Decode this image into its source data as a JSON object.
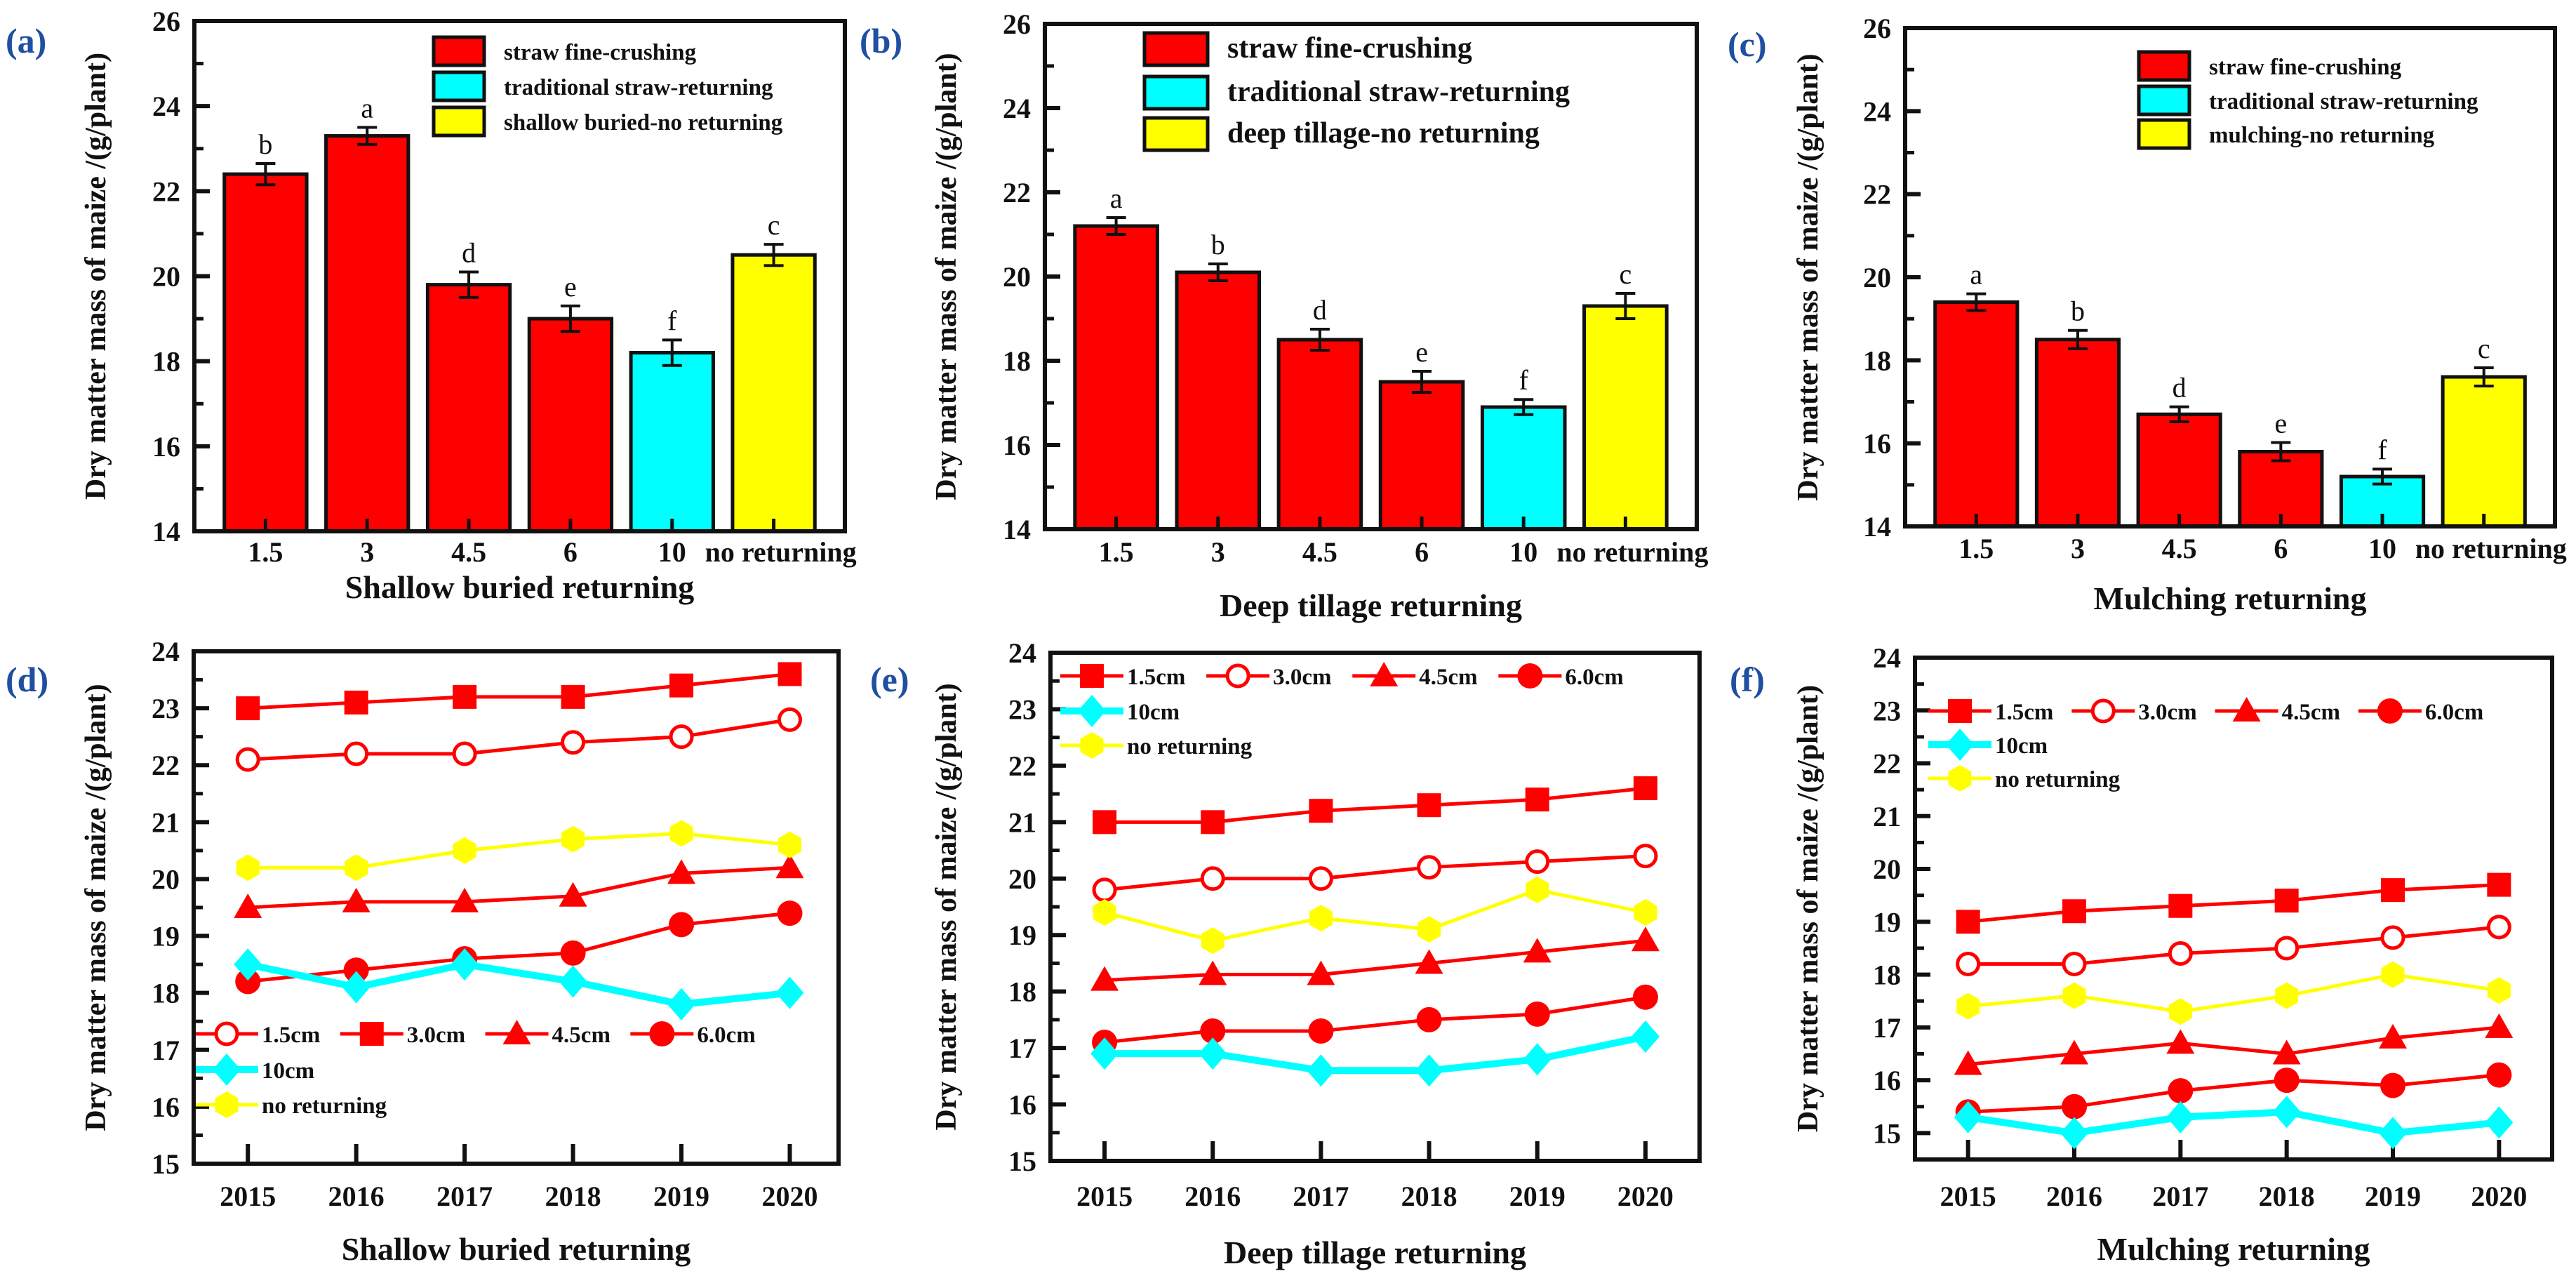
{
  "colors": {
    "red": "#ff0000",
    "cyan": "#00ffff",
    "yellow": "#ffff00",
    "axis": "#111111",
    "panel_label": "#1f4fa0"
  },
  "chart_data": [
    {
      "id": "a",
      "type": "bar",
      "panel_label": "(a)",
      "title": "",
      "xlabel": "Shallow buried returning",
      "ylabel": "Dry matter mass of maize /(g/plant)",
      "ylim": [
        14,
        26
      ],
      "ymajor": 2,
      "categories": [
        "1.5",
        "3",
        "4.5",
        "6",
        "10",
        "no returning"
      ],
      "values": [
        22.4,
        23.3,
        19.8,
        19.0,
        18.2,
        20.5
      ],
      "errors": [
        0.25,
        0.2,
        0.3,
        0.3,
        0.3,
        0.25
      ],
      "significance": [
        "b",
        "a",
        "d",
        "e",
        "f",
        "c"
      ],
      "bar_groups": [
        0,
        0,
        0,
        0,
        1,
        2
      ],
      "legend": [
        "straw fine-crushing",
        "traditional straw-returning",
        "shallow buried-no returning"
      ],
      "legend_placement": "top-right"
    },
    {
      "id": "b",
      "type": "bar",
      "panel_label": "(b)",
      "title": "",
      "xlabel": "Deep tillage returning",
      "ylabel": "Dry matter mass of maize /(g/plant)",
      "ylim": [
        14,
        26
      ],
      "ymajor": 2,
      "categories": [
        "1.5",
        "3",
        "4.5",
        "6",
        "10",
        "no returning"
      ],
      "values": [
        21.2,
        20.1,
        18.5,
        17.5,
        16.9,
        19.3
      ],
      "errors": [
        0.2,
        0.2,
        0.25,
        0.25,
        0.18,
        0.3
      ],
      "significance": [
        "a",
        "b",
        "d",
        "e",
        "f",
        "c"
      ],
      "bar_groups": [
        0,
        0,
        0,
        0,
        1,
        2
      ],
      "legend": [
        "straw fine-crushing",
        "traditional straw-returning",
        "deep tillage-no returning"
      ],
      "legend_placement": "top-right"
    },
    {
      "id": "c",
      "type": "bar",
      "panel_label": "(c)",
      "title": "",
      "xlabel": "Mulching returning",
      "ylabel": "Dry matter mass of maize /(g/plant)",
      "ylim": [
        14,
        26
      ],
      "ymajor": 2,
      "categories": [
        "1.5",
        "3",
        "4.5",
        "6",
        "10",
        "no returning"
      ],
      "values": [
        19.4,
        18.5,
        16.7,
        15.8,
        15.2,
        17.6
      ],
      "errors": [
        0.2,
        0.22,
        0.18,
        0.22,
        0.18,
        0.22
      ],
      "significance": [
        "a",
        "b",
        "d",
        "e",
        "f",
        "c"
      ],
      "bar_groups": [
        0,
        0,
        0,
        0,
        1,
        2
      ],
      "legend": [
        "straw fine-crushing",
        "traditional straw-returning",
        "mulching-no returning"
      ],
      "legend_placement": "top-right"
    },
    {
      "id": "d",
      "type": "line",
      "panel_label": "(d)",
      "xlabel": "Shallow buried returning",
      "ylabel": "Dry matter mass of maize /(g/plant)",
      "x": [
        2015,
        2016,
        2017,
        2018,
        2019,
        2020
      ],
      "xlim": [
        2014.5,
        2020.45
      ],
      "ylim": [
        15,
        24
      ],
      "ymajor": 1,
      "legend_placement": "bottom-left",
      "series": [
        {
          "name": "1.5cm",
          "marker": "open-circle",
          "color": "#ff0000",
          "values": [
            22.1,
            22.2,
            22.2,
            22.4,
            22.5,
            22.8
          ]
        },
        {
          "name": "3.0cm",
          "marker": "square",
          "color": "#ff0000",
          "values": [
            23.0,
            23.1,
            23.2,
            23.2,
            23.4,
            23.6
          ]
        },
        {
          "name": "4.5cm",
          "marker": "triangle",
          "color": "#ff0000",
          "values": [
            19.5,
            19.6,
            19.6,
            19.7,
            20.1,
            20.2
          ]
        },
        {
          "name": "6.0cm",
          "marker": "circle",
          "color": "#ff0000",
          "values": [
            18.2,
            18.4,
            18.6,
            18.7,
            19.2,
            19.4
          ]
        },
        {
          "name": "10cm",
          "marker": "diamond",
          "color": "#00ffff",
          "values": [
            18.5,
            18.1,
            18.5,
            18.2,
            17.8,
            18.0
          ]
        },
        {
          "name": "no returning",
          "marker": "hexagon",
          "color": "#ffff00",
          "values": [
            20.2,
            20.2,
            20.5,
            20.7,
            20.8,
            20.6
          ]
        }
      ]
    },
    {
      "id": "e",
      "type": "line",
      "panel_label": "(e)",
      "xlabel": "Deep tillage returning",
      "ylabel": "Dry matter mass of maize /(g/plant)",
      "x": [
        2015,
        2016,
        2017,
        2018,
        2019,
        2020
      ],
      "xlim": [
        2014.5,
        2020.5
      ],
      "ylim": [
        15,
        24
      ],
      "ymajor": 1,
      "legend_placement": "top-left",
      "series": [
        {
          "name": "1.5cm",
          "marker": "square",
          "color": "#ff0000",
          "values": [
            21.0,
            21.0,
            21.2,
            21.3,
            21.4,
            21.6
          ]
        },
        {
          "name": "3.0cm",
          "marker": "open-circle",
          "color": "#ff0000",
          "values": [
            19.8,
            20.0,
            20.0,
            20.2,
            20.3,
            20.4
          ]
        },
        {
          "name": "4.5cm",
          "marker": "triangle",
          "color": "#ff0000",
          "values": [
            18.2,
            18.3,
            18.3,
            18.5,
            18.7,
            18.9
          ]
        },
        {
          "name": "6.0cm",
          "marker": "circle",
          "color": "#ff0000",
          "values": [
            17.1,
            17.3,
            17.3,
            17.5,
            17.6,
            17.9
          ]
        },
        {
          "name": "10cm",
          "marker": "diamond",
          "color": "#00ffff",
          "values": [
            16.9,
            16.9,
            16.6,
            16.6,
            16.8,
            17.2
          ]
        },
        {
          "name": "no returning",
          "marker": "hexagon",
          "color": "#ffff00",
          "values": [
            19.4,
            18.9,
            19.3,
            19.1,
            19.8,
            19.4
          ]
        }
      ]
    },
    {
      "id": "f",
      "type": "line",
      "panel_label": "(f)",
      "xlabel": "Mulching returning",
      "ylabel": "Dry matter mass of maize /(g/plant)",
      "x": [
        2015,
        2016,
        2017,
        2018,
        2019,
        2020
      ],
      "xlim": [
        2014.5,
        2020.5
      ],
      "ylim": [
        14.5,
        24
      ],
      "ymajor": 1,
      "legend_placement": "top-left",
      "series": [
        {
          "name": "1.5cm",
          "marker": "square",
          "color": "#ff0000",
          "values": [
            19.0,
            19.2,
            19.3,
            19.4,
            19.6,
            19.7
          ]
        },
        {
          "name": "3.0cm",
          "marker": "open-circle",
          "color": "#ff0000",
          "values": [
            18.2,
            18.2,
            18.4,
            18.5,
            18.7,
            18.9
          ]
        },
        {
          "name": "4.5cm",
          "marker": "triangle",
          "color": "#ff0000",
          "values": [
            16.3,
            16.5,
            16.7,
            16.5,
            16.8,
            17.0
          ]
        },
        {
          "name": "6.0cm",
          "marker": "circle",
          "color": "#ff0000",
          "values": [
            15.4,
            15.5,
            15.8,
            16.0,
            15.9,
            16.1
          ]
        },
        {
          "name": "10cm",
          "marker": "diamond",
          "color": "#00ffff",
          "values": [
            15.3,
            15.0,
            15.3,
            15.4,
            15.0,
            15.2
          ]
        },
        {
          "name": "no returning",
          "marker": "hexagon",
          "color": "#ffff00",
          "values": [
            17.4,
            17.6,
            17.3,
            17.6,
            18.0,
            17.7
          ]
        }
      ]
    }
  ]
}
